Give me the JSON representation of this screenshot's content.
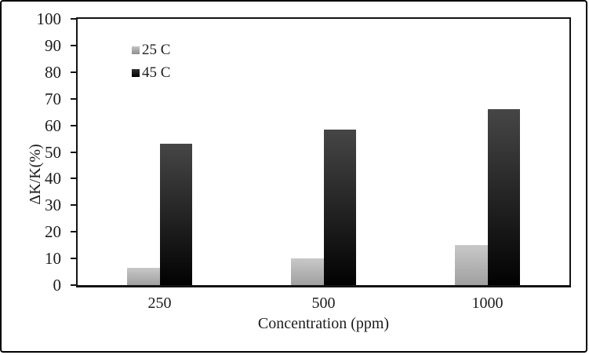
{
  "figure": {
    "background": "#ffffff",
    "border_color": "#000000"
  },
  "chart_data": {
    "type": "bar",
    "title": "",
    "xlabel": "Concentration (ppm)",
    "ylabel": "ΔK/K(%)",
    "categories": [
      "250",
      "500",
      "1000"
    ],
    "series": [
      {
        "name": "25 C",
        "values": [
          6.5,
          10,
          15
        ],
        "color_top": "#c8c8c8",
        "color_bottom": "#a0a0a0",
        "legend_color_top": "#c4c4c4",
        "legend_color_bottom": "#8e8e8e"
      },
      {
        "name": "45 C",
        "values": [
          53,
          58.5,
          66
        ],
        "color_top": "#464646",
        "color_bottom": "#020202",
        "legend_color_top": "#333333",
        "legend_color_bottom": "#000000"
      }
    ],
    "ylim": [
      0,
      100
    ],
    "ytick_step": 10,
    "grid": false,
    "legend_position": "inside-top-left",
    "axis_color": "#141414",
    "text_color": "#1c1c1c"
  }
}
